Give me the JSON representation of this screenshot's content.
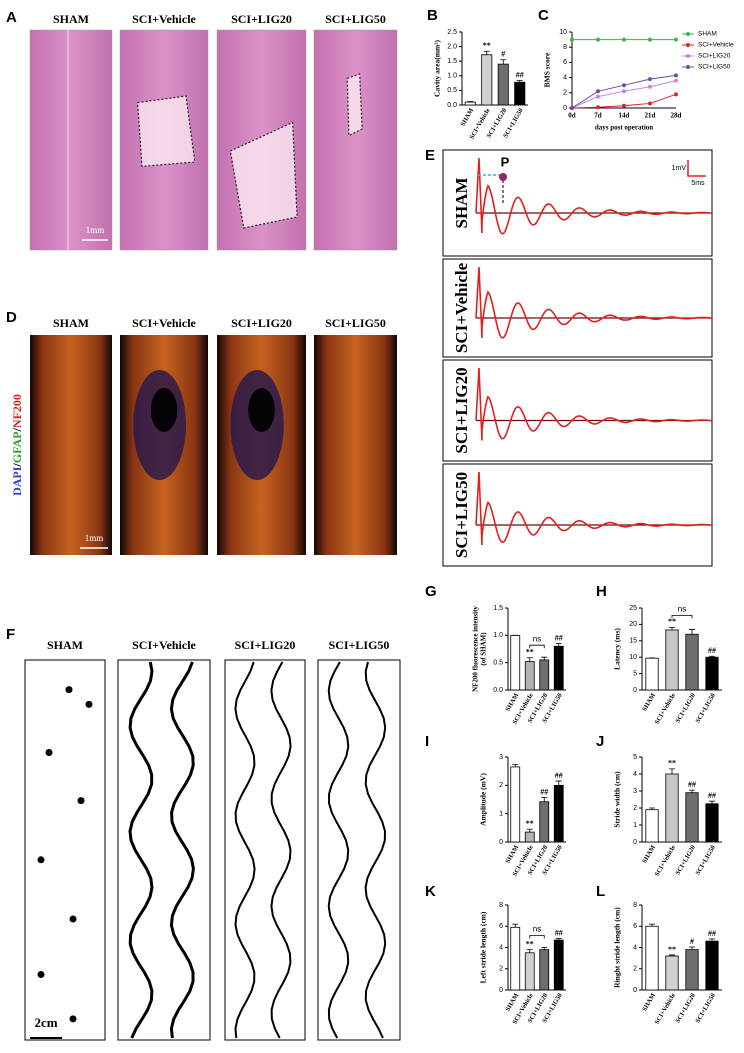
{
  "figure": {
    "A": {
      "label": "A",
      "titles": [
        "SHAM",
        "SCI+Vehicle",
        "SCI+LIG20",
        "SCI+LIG50"
      ],
      "scale_bar": "1mm"
    },
    "D": {
      "label": "D",
      "titles": [
        "SHAM",
        "SCI+Vehicle",
        "SCI+LIG20",
        "SCI+LIG50"
      ],
      "stain": [
        "DAPI",
        "/",
        "GFAP",
        "/",
        "NF200"
      ],
      "scale_bar": "1mm"
    },
    "E": {
      "label": "E",
      "rows": [
        "SHAM",
        "SCI+Vehicle",
        "SCI+LIG20",
        "SCI+LIG50"
      ],
      "peak": "P",
      "scale_y": "1mV",
      "scale_x": "5ms"
    },
    "F": {
      "label": "F",
      "titles": [
        "SHAM",
        "SCI+Vehicle",
        "SCI+LIG20",
        "SCI+LIG50"
      ],
      "scale_bar": "2cm"
    }
  },
  "chart_data": [
    {
      "type": "bar",
      "label": "B",
      "ylabel": "Cavity area(mm²)",
      "categories": [
        "SHAM",
        "SCI+Vehicle",
        "SCI+LIG20",
        "SCI+LIG50"
      ],
      "values": [
        0.1,
        1.72,
        1.4,
        0.78
      ],
      "errors": [
        0.02,
        0.12,
        0.15,
        0.06
      ],
      "colors": [
        "#ffffff",
        "#d0d0d0",
        "#6e6e6e",
        "#000000"
      ],
      "significance": [
        null,
        "**",
        "#",
        "##"
      ],
      "ylim": [
        0,
        2.5
      ],
      "yticks": [
        {
          "value": 0,
          "label": "0.0"
        },
        0.5,
        {
          "value": 1,
          "label": "1.0"
        },
        1.5,
        {
          "value": 2,
          "label": "2.0"
        },
        2.5
      ]
    },
    {
      "type": "line",
      "label": "C",
      "ylabel": "BMS score",
      "xlabel": "days post operation",
      "categories": [
        "0d",
        "7d",
        "14d",
        "21d",
        "28d"
      ],
      "series": [
        {
          "name": "SHAM",
          "color": "#3cb44b",
          "values": [
            9,
            9,
            9,
            9,
            9
          ]
        },
        {
          "name": "SCI+Vehicle",
          "color": "#e0202a",
          "values": [
            0,
            0.1,
            0.3,
            0.6,
            1.8
          ]
        },
        {
          "name": "SCI+LIG20",
          "color": "#c48ad0",
          "values": [
            0,
            1.5,
            2.2,
            2.8,
            3.6
          ]
        },
        {
          "name": "SCI+LIG50",
          "color": "#6a4fa0",
          "values": [
            0,
            2.2,
            3.0,
            3.8,
            4.3
          ]
        }
      ],
      "ylim": [
        0,
        10
      ],
      "yticks": [
        0,
        2,
        4,
        6,
        8,
        10
      ]
    },
    {
      "type": "bar",
      "label": "G",
      "ylabel": [
        "NF200 fluorescence intensity",
        "(of SHAM)"
      ],
      "categories": [
        "SHAM",
        "SCI+Vehicle",
        "SCI+LIG20",
        "SCI+LIG50"
      ],
      "values": [
        1.0,
        0.52,
        0.55,
        0.8
      ],
      "errors": [
        0,
        0.07,
        0.05,
        0.05
      ],
      "colors": [
        "#ffffff",
        "#b4b4b4",
        "#6e6e6e",
        "#000000"
      ],
      "significance": [
        null,
        "**",
        null,
        "##"
      ],
      "bracket": {
        "label": "ns",
        "between": [
          "SCI+Vehicle",
          "SCI+LIG20"
        ]
      },
      "ylim": [
        0,
        1.5
      ],
      "yticks": [
        {
          "value": 0,
          "label": "0.0"
        },
        0.5,
        {
          "value": 1,
          "label": "1.0"
        },
        1.5
      ]
    },
    {
      "type": "bar",
      "label": "H",
      "ylabel": "Latency (ms)",
      "categories": [
        "SHAM",
        "SCI+Vehicle",
        "SCI+LIG20",
        "SCI+LIG50"
      ],
      "values": [
        9.7,
        18.3,
        17,
        10
      ],
      "errors": [
        0.1,
        0.8,
        1.5,
        0.3
      ],
      "colors": [
        "#ffffff",
        "#c8c8c8",
        "#6e6e6e",
        "#000000"
      ],
      "significance": [
        null,
        "**",
        null,
        "##"
      ],
      "bracket": {
        "label": "ns",
        "between": [
          "SCI+Vehicle",
          "SCI+LIG20"
        ]
      },
      "ylim": [
        0,
        25
      ],
      "yticks": [
        0,
        5,
        10,
        15,
        20,
        25
      ]
    },
    {
      "type": "bar",
      "label": "I",
      "ylabel": "Amplitude (mV)",
      "categories": [
        "SHAM",
        "SCI+Vehicle",
        "SCI+LIG20",
        "SCI+LIG50"
      ],
      "values": [
        2.65,
        0.35,
        1.42,
        2.0
      ],
      "errors": [
        0.08,
        0.1,
        0.15,
        0.15
      ],
      "colors": [
        "#ffffff",
        "#b4b4b4",
        "#6e6e6e",
        "#000000"
      ],
      "significance": [
        null,
        "**",
        "##",
        "##"
      ],
      "ylim": [
        0,
        3
      ],
      "yticks": [
        0,
        1,
        2,
        3
      ]
    },
    {
      "type": "bar",
      "label": "J",
      "ylabel": "Stride width (cm)",
      "categories": [
        "SHAM",
        "SCI+Vehicle",
        "SCI+LIG20",
        "SCI+LIG50"
      ],
      "values": [
        1.9,
        4.0,
        2.9,
        2.25
      ],
      "errors": [
        0.1,
        0.3,
        0.15,
        0.15
      ],
      "colors": [
        "#ffffff",
        "#c8c8c8",
        "#6e6e6e",
        "#000000"
      ],
      "significance": [
        null,
        "**",
        "##",
        "##"
      ],
      "ylim": [
        0,
        5
      ],
      "yticks": [
        0,
        1,
        2,
        3,
        4,
        5
      ]
    },
    {
      "type": "bar",
      "label": "K",
      "ylabel": "Left stride length (cm)",
      "categories": [
        "SHAM",
        "SCI+Vehicle",
        "SCI+LIG20",
        "SCI+LIG50"
      ],
      "values": [
        5.9,
        3.5,
        3.8,
        4.7
      ],
      "errors": [
        0.3,
        0.3,
        0.2,
        0.15
      ],
      "colors": [
        "#ffffff",
        "#d0d0d0",
        "#6e6e6e",
        "#000000"
      ],
      "significance": [
        null,
        "**",
        null,
        "##"
      ],
      "bracket": {
        "label": "ns",
        "between": [
          "SCI+Vehicle",
          "SCI+LIG20"
        ]
      },
      "ylim": [
        0,
        8
      ],
      "yticks": [
        0,
        2,
        4,
        6,
        8
      ]
    },
    {
      "type": "bar",
      "label": "L",
      "ylabel": "Ringht stride length (cm)",
      "categories": [
        "SHAM",
        "SCI+Vehicle",
        "SCI+LIG20",
        "SCI+LIG50"
      ],
      "values": [
        6.0,
        3.2,
        3.8,
        4.6
      ],
      "errors": [
        0.2,
        0.1,
        0.25,
        0.2
      ],
      "colors": [
        "#ffffff",
        "#d0d0d0",
        "#6e6e6e",
        "#000000"
      ],
      "significance": [
        null,
        "**",
        "#",
        "##"
      ],
      "ylim": [
        0,
        8
      ],
      "yticks": [
        0,
        2,
        4,
        6,
        8
      ]
    }
  ]
}
